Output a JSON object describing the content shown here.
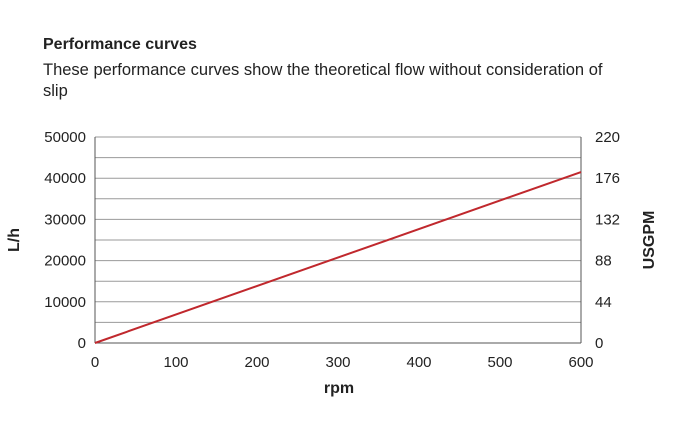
{
  "header": {
    "title": "Performance curves",
    "subtitle": "These performance curves show the theoretical flow without consideration of slip"
  },
  "colors": {
    "line": "#c0282d",
    "grid": "#9a9a9a",
    "axis": "#555555"
  },
  "chart_data": {
    "type": "line",
    "xlabel": "rpm",
    "ylabel": "L/h",
    "y2label": "USGPM",
    "xlim": [
      0,
      600
    ],
    "ylim": [
      0,
      50000
    ],
    "y2lim": [
      0,
      220
    ],
    "x_ticks": [
      0,
      100,
      200,
      300,
      400,
      500,
      600
    ],
    "y_ticks": [
      0,
      10000,
      20000,
      30000,
      40000,
      50000
    ],
    "y2_ticks": [
      0,
      44,
      88,
      132,
      176,
      220
    ],
    "grid": true,
    "series": [
      {
        "x": [
          0,
          600
        ],
        "values": [
          0,
          41500
        ]
      }
    ]
  }
}
